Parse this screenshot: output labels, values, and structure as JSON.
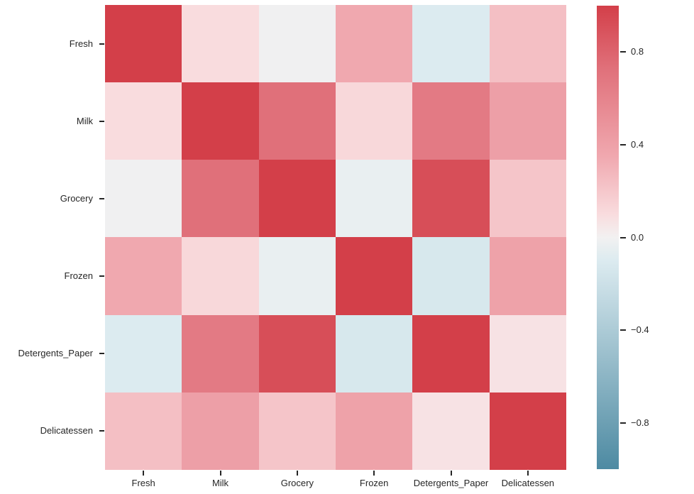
{
  "figure": {
    "background_color": "#ffffff",
    "text_color": "#262626",
    "tick_color": "#262626"
  },
  "chart_data": {
    "type": "heatmap",
    "title": "",
    "xlabel": "",
    "ylabel": "",
    "categories": [
      "Fresh",
      "Milk",
      "Grocery",
      "Frozen",
      "Detergents_Paper",
      "Delicatessen"
    ],
    "matrix": [
      [
        1.0,
        0.1,
        -0.01,
        0.35,
        -0.1,
        0.24
      ],
      [
        0.1,
        1.0,
        0.73,
        0.12,
        0.66,
        0.41
      ],
      [
        -0.01,
        0.73,
        1.0,
        -0.04,
        0.92,
        0.21
      ],
      [
        0.35,
        0.12,
        -0.04,
        1.0,
        -0.13,
        0.39
      ],
      [
        -0.1,
        0.66,
        0.92,
        -0.13,
        1.0,
        0.07
      ],
      [
        0.24,
        0.41,
        0.21,
        0.39,
        0.07,
        1.0
      ]
    ],
    "vmin": -1.0,
    "vmax": 1.0,
    "grid": false,
    "legend_position": "colorbar-right",
    "colorbar": {
      "ticks": [
        0.8,
        0.4,
        0.0,
        -0.4,
        -0.8
      ],
      "tick_labels": [
        "0.8",
        "0.4",
        "0.0",
        "−0.4",
        "−0.8"
      ],
      "top_color": "#d33f49",
      "bottom_color": "#4d8aa2"
    },
    "colormap_stops": [
      {
        "value": -1.0,
        "color": "#4d8aa2"
      },
      {
        "value": -0.1,
        "color": "#dcebf0"
      },
      {
        "value": 0.0,
        "color": "#f2f1f1"
      },
      {
        "value": 0.1,
        "color": "#f9dcde"
      },
      {
        "value": 0.35,
        "color": "#f0a8af"
      },
      {
        "value": 0.73,
        "color": "#e0707a"
      },
      {
        "value": 1.0,
        "color": "#d33f49"
      }
    ]
  }
}
